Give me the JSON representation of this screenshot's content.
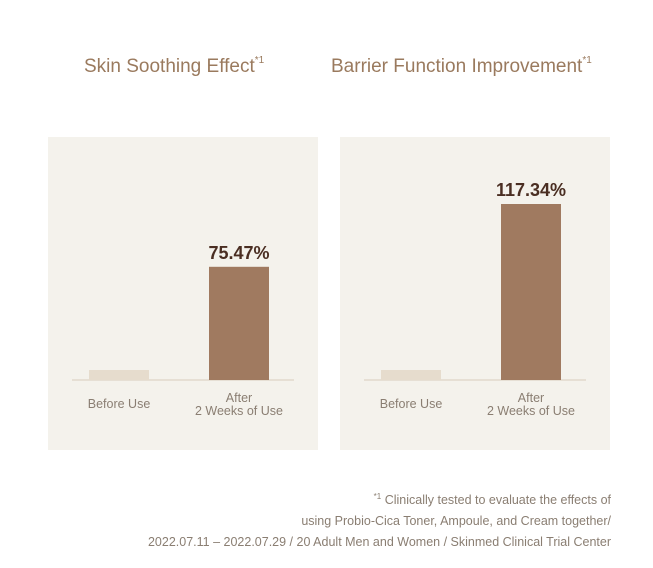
{
  "colors": {
    "before_bar": "#e6dccd",
    "after_bar": "#a07a60",
    "value_text": "#4a2e22",
    "axis_line": "#d8ccbc",
    "category_text": "#8a7e72",
    "title_text": "#9a7a5e"
  },
  "chart_data": [
    {
      "type": "bar",
      "title": "Skin Soothing Effect",
      "title_mark": "*1",
      "categories": [
        "Before Use",
        "After\n2 Weeks of Use"
      ],
      "values": [
        0,
        75.47
      ],
      "value_labels": [
        "",
        "75.47%"
      ],
      "ylim": [
        0,
        117.34
      ],
      "grid": false,
      "legend": "none"
    },
    {
      "type": "bar",
      "title": "Barrier Function Improvement",
      "title_mark": "*1",
      "categories": [
        "Before Use",
        "After\n2 Weeks of Use"
      ],
      "values": [
        0,
        117.34
      ],
      "value_labels": [
        "",
        "117.34%"
      ],
      "ylim": [
        0,
        117.34
      ],
      "grid": false,
      "legend": "none"
    }
  ],
  "footnote": {
    "mark": "*1",
    "line1": " Clinically tested to evaluate the effects of",
    "line2": "using Probio-Cica Toner, Ampoule, and Cream together/",
    "line3": "2022.07.11 – 2022.07.29 / 20 Adult Men and Women / Skinmed Clinical Trial Center"
  }
}
